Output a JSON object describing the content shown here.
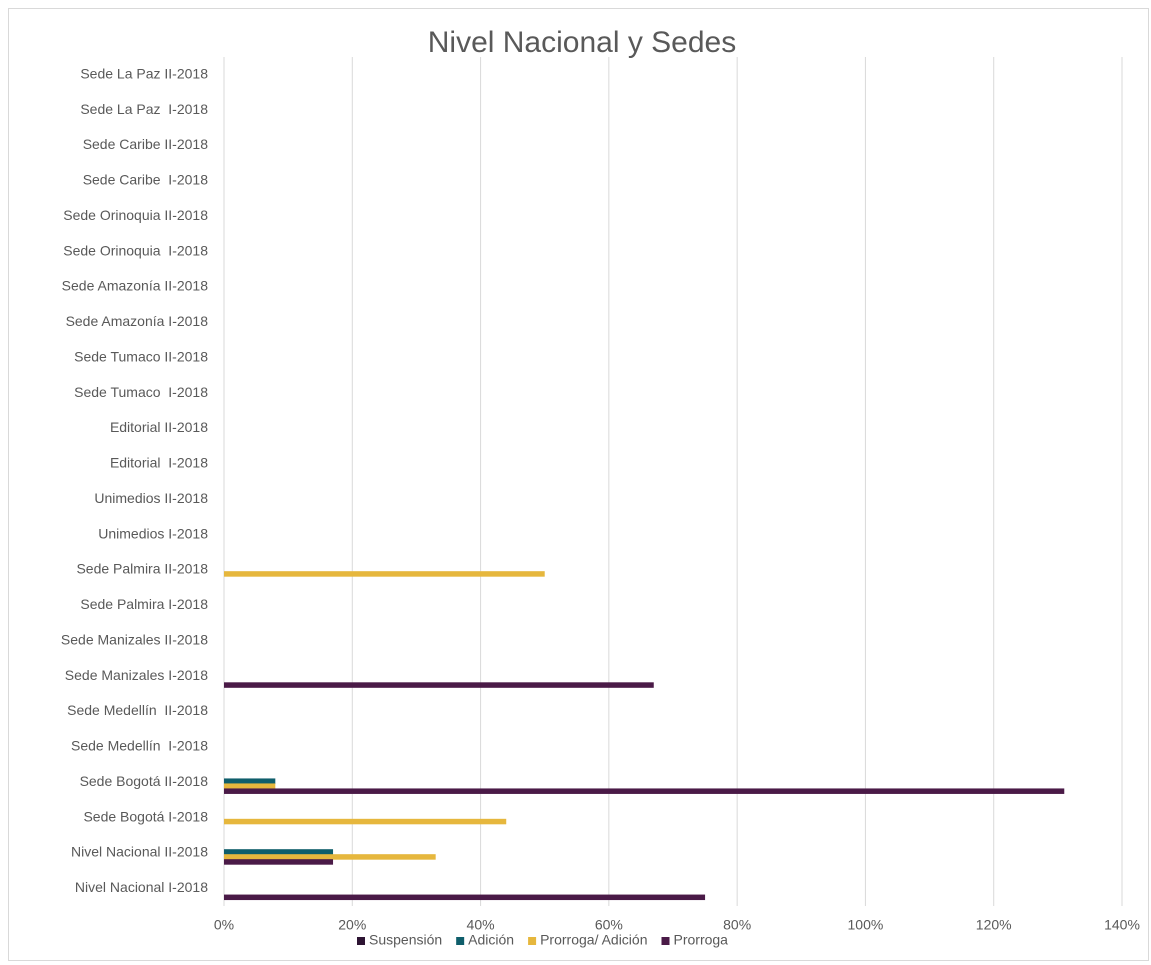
{
  "chart_data": {
    "type": "bar",
    "orientation": "horizontal",
    "title": "Nivel Nacional y Sedes",
    "categories": [
      "Nivel Nacional I-2018",
      "Nivel Nacional II-2018",
      "Sede Bogotá I-2018",
      "Sede Bogotá II-2018",
      "Sede Medellín  I-2018",
      "Sede Medellín  II-2018",
      "Sede Manizales I-2018",
      "Sede Manizales II-2018",
      "Sede Palmira I-2018",
      "Sede Palmira II-2018",
      "Unimedios I-2018",
      "Unimedios II-2018",
      "Editorial  I-2018",
      "Editorial II-2018",
      "Sede Tumaco  I-2018",
      "Sede Tumaco II-2018",
      "Sede Amazonía I-2018",
      "Sede Amazonía II-2018",
      "Sede Orinoquia  I-2018",
      "Sede Orinoquia II-2018",
      "Sede Caribe  I-2018",
      "Sede Caribe II-2018",
      "Sede La Paz  I-2018",
      "Sede La Paz II-2018"
    ],
    "series": [
      {
        "name": "Suspensión",
        "color": "#2d1433",
        "values": [
          null,
          null,
          null,
          null,
          null,
          null,
          null,
          null,
          null,
          null,
          null,
          null,
          null,
          null,
          null,
          null,
          null,
          null,
          null,
          null,
          null,
          null,
          null,
          null
        ]
      },
      {
        "name": "Adición",
        "color": "#0f5e6b",
        "values": [
          null,
          17,
          null,
          8,
          null,
          null,
          null,
          null,
          null,
          null,
          null,
          null,
          null,
          null,
          null,
          null,
          null,
          null,
          null,
          null,
          null,
          null,
          null,
          null
        ]
      },
      {
        "name": "Prorroga/ Adición",
        "color": "#e6b73d",
        "values": [
          null,
          33,
          44,
          8,
          null,
          null,
          null,
          null,
          null,
          50,
          null,
          null,
          null,
          null,
          null,
          null,
          null,
          null,
          null,
          null,
          null,
          null,
          null,
          null
        ]
      },
      {
        "name": "Prorroga",
        "color": "#4a1a47",
        "values": [
          75,
          17,
          null,
          131,
          null,
          null,
          67,
          null,
          null,
          null,
          null,
          null,
          null,
          null,
          null,
          null,
          null,
          null,
          null,
          null,
          null,
          null,
          null,
          null
        ]
      }
    ],
    "xlim": [
      0,
      140
    ],
    "xticks": [
      {
        "value": 0,
        "label": "0%"
      },
      {
        "value": 20,
        "label": "20%"
      },
      {
        "value": 40,
        "label": "40%"
      },
      {
        "value": 60,
        "label": "60%"
      },
      {
        "value": 80,
        "label": "80%"
      },
      {
        "value": 100,
        "label": "100%"
      },
      {
        "value": 120,
        "label": "120%"
      },
      {
        "value": 140,
        "label": "140%"
      }
    ],
    "grid": true,
    "legend": "bottom"
  }
}
